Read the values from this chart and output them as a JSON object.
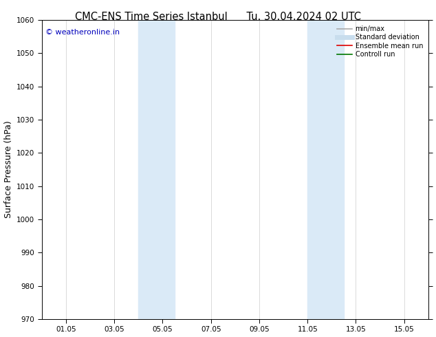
{
  "title_left": "CMC-ENS Time Series Istanbul",
  "title_right": "Tu. 30.04.2024 02 UTC",
  "ylabel": "Surface Pressure (hPa)",
  "ylim": [
    970,
    1060
  ],
  "yticks": [
    970,
    980,
    990,
    1000,
    1010,
    1020,
    1030,
    1040,
    1050,
    1060
  ],
  "xlim": [
    0,
    16
  ],
  "xtick_labels": [
    "01.05",
    "03.05",
    "05.05",
    "07.05",
    "09.05",
    "11.05",
    "13.05",
    "15.05"
  ],
  "xtick_positions": [
    1,
    3,
    5,
    7,
    9,
    11,
    13,
    15
  ],
  "shaded_regions": [
    {
      "x_start": 4.0,
      "x_end": 5.5
    },
    {
      "x_start": 11.0,
      "x_end": 12.5
    }
  ],
  "shaded_color": "#daeaf7",
  "background_color": "#ffffff",
  "watermark_text": "© weatheronline.in",
  "watermark_color": "#0000bb",
  "legend_items": [
    {
      "label": "min/max",
      "color": "#aaaaaa",
      "lw": 1.2
    },
    {
      "label": "Standard deviation",
      "color": "#c8dded",
      "lw": 5
    },
    {
      "label": "Ensemble mean run",
      "color": "#dd0000",
      "lw": 1.2
    },
    {
      "label": "Controll run",
      "color": "#007700",
      "lw": 1.2
    }
  ],
  "spine_color": "#000000",
  "tick_color": "#000000",
  "tick_fontsize": 7.5,
  "label_fontsize": 9,
  "title_fontsize": 10.5
}
